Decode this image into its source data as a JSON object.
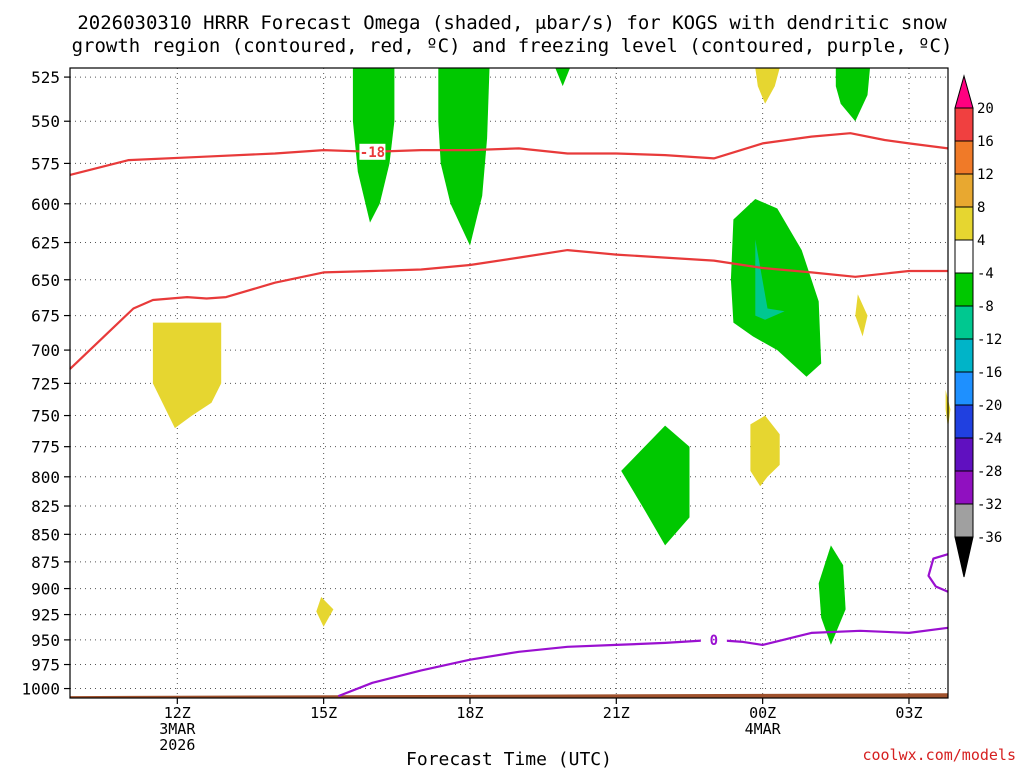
{
  "chart_data": {
    "type": "heatmap",
    "title_lines": [
      "2026030310 HRRR Forecast Omega (shaded, μbar/s) for KOGS with dendritic snow",
      "growth region (contoured, red, ºC) and freezing level (contoured, purple, ºC)"
    ],
    "xlabel": "Forecast Time (UTC)",
    "credit": "coolwx.com/models",
    "x_range_hours": [
      9.8,
      27.8
    ],
    "y_range_hpa": [
      520,
      1010
    ],
    "y_scale": "log",
    "y_ticks": [
      525,
      550,
      575,
      600,
      625,
      650,
      675,
      700,
      725,
      750,
      775,
      800,
      825,
      850,
      875,
      900,
      925,
      950,
      975,
      1000
    ],
    "x_ticks": [
      {
        "h": 12,
        "lines": [
          "12Z",
          "3MAR",
          "2026"
        ]
      },
      {
        "h": 15,
        "lines": [
          "15Z"
        ]
      },
      {
        "h": 18,
        "lines": [
          "18Z"
        ]
      },
      {
        "h": 21,
        "lines": [
          "21Z"
        ]
      },
      {
        "h": 24,
        "lines": [
          "00Z",
          "4MAR"
        ]
      },
      {
        "h": 27,
        "lines": [
          "03Z"
        ]
      }
    ],
    "colorbar": {
      "labels": [
        "20",
        "16",
        "12",
        "8",
        "4",
        "-4",
        "-8",
        "-12",
        "-16",
        "-20",
        "-24",
        "-28",
        "-32",
        "-36"
      ],
      "colors": [
        "#ff0080",
        "#f04040",
        "#f07a28",
        "#e8a830",
        "#e6d630",
        "#ffffff",
        "#00c800",
        "#00c890",
        "#00b4c8",
        "#1e90ff",
        "#2040e0",
        "#6010c0",
        "#9010c0",
        "#a0a0a0",
        "#000000"
      ]
    },
    "shaded_regions": [
      {
        "color": "#00c800",
        "points": [
          [
            15.6,
            520
          ],
          [
            16.45,
            520
          ],
          [
            16.45,
            550
          ],
          [
            16.35,
            575
          ],
          [
            16.15,
            600
          ],
          [
            15.95,
            612
          ],
          [
            15.7,
            580
          ],
          [
            15.6,
            550
          ]
        ]
      },
      {
        "color": "#00c800",
        "points": [
          [
            17.35,
            520
          ],
          [
            18.4,
            520
          ],
          [
            18.35,
            560
          ],
          [
            18.25,
            595
          ],
          [
            18.0,
            627
          ],
          [
            17.6,
            600
          ],
          [
            17.4,
            575
          ],
          [
            17.35,
            550
          ]
        ]
      },
      {
        "color": "#00c800",
        "points": [
          [
            19.75,
            520
          ],
          [
            20.05,
            520
          ],
          [
            19.9,
            530
          ]
        ]
      },
      {
        "color": "#e6d630",
        "points": [
          [
            23.85,
            520
          ],
          [
            24.35,
            520
          ],
          [
            24.25,
            530
          ],
          [
            24.05,
            540
          ],
          [
            23.9,
            530
          ]
        ]
      },
      {
        "color": "#00c800",
        "points": [
          [
            25.5,
            520
          ],
          [
            26.2,
            520
          ],
          [
            26.15,
            535
          ],
          [
            25.9,
            550
          ],
          [
            25.6,
            540
          ],
          [
            25.5,
            530
          ]
        ]
      },
      {
        "color": "#00c800",
        "points": [
          [
            23.4,
            610
          ],
          [
            23.85,
            597
          ],
          [
            24.3,
            603
          ],
          [
            24.8,
            630
          ],
          [
            25.15,
            665
          ],
          [
            25.2,
            710
          ],
          [
            24.9,
            720
          ],
          [
            24.3,
            700
          ],
          [
            23.8,
            690
          ],
          [
            23.4,
            680
          ],
          [
            23.35,
            650
          ]
        ]
      },
      {
        "color": "#00c890",
        "points": [
          [
            23.85,
            623
          ],
          [
            24.1,
            670
          ],
          [
            24.45,
            672
          ],
          [
            24.05,
            678
          ],
          [
            23.85,
            675
          ]
        ]
      },
      {
        "color": "#e6d630",
        "points": [
          [
            25.95,
            660
          ],
          [
            26.15,
            675
          ],
          [
            26.05,
            690
          ],
          [
            25.9,
            675
          ]
        ]
      },
      {
        "color": "#e6d630",
        "points": [
          [
            11.5,
            680
          ],
          [
            12.9,
            680
          ],
          [
            12.9,
            725
          ],
          [
            12.7,
            740
          ],
          [
            12.3,
            750
          ],
          [
            11.95,
            760
          ],
          [
            11.5,
            725
          ]
        ]
      },
      {
        "color": "#e6d630",
        "points": [
          [
            27.75,
            730
          ],
          [
            27.85,
            745
          ],
          [
            27.8,
            760
          ],
          [
            27.75,
            745
          ]
        ]
      },
      {
        "color": "#e6d630",
        "points": [
          [
            23.75,
            757
          ],
          [
            24.05,
            750
          ],
          [
            24.35,
            765
          ],
          [
            24.35,
            790
          ],
          [
            24.1,
            800
          ],
          [
            23.95,
            808
          ],
          [
            23.75,
            795
          ]
        ]
      },
      {
        "color": "#00c800",
        "points": [
          [
            22.0,
            758
          ],
          [
            22.5,
            775
          ],
          [
            22.5,
            835
          ],
          [
            22.0,
            860
          ],
          [
            21.6,
            830
          ],
          [
            21.1,
            795
          ]
        ]
      },
      {
        "color": "#e6d630",
        "points": [
          [
            14.95,
            908
          ],
          [
            15.2,
            920
          ],
          [
            15.0,
            937
          ],
          [
            14.85,
            922
          ]
        ]
      },
      {
        "color": "#00c800",
        "points": [
          [
            25.4,
            860
          ],
          [
            25.65,
            878
          ],
          [
            25.7,
            920
          ],
          [
            25.4,
            955
          ],
          [
            25.2,
            928
          ],
          [
            25.15,
            895
          ]
        ]
      }
    ],
    "red_contours": [
      {
        "label": "-18",
        "points": [
          [
            9.8,
            582
          ],
          [
            11.0,
            573
          ],
          [
            12.5,
            571
          ],
          [
            14.0,
            569
          ],
          [
            15.0,
            567
          ],
          [
            16.0,
            568
          ],
          [
            17.0,
            567
          ],
          [
            18.0,
            567
          ],
          [
            19.0,
            566
          ],
          [
            20.0,
            569
          ],
          [
            21.0,
            569
          ],
          [
            22.0,
            570
          ],
          [
            23.0,
            572
          ],
          [
            24.0,
            563
          ],
          [
            25.0,
            559
          ],
          [
            25.8,
            557
          ],
          [
            26.5,
            561
          ],
          [
            27.0,
            563
          ],
          [
            27.8,
            566
          ]
        ]
      },
      {
        "label": "",
        "points": [
          [
            9.8,
            714
          ],
          [
            10.5,
            690
          ],
          [
            11.1,
            670
          ],
          [
            11.5,
            664
          ],
          [
            12.2,
            662
          ],
          [
            12.6,
            663
          ],
          [
            13.0,
            662
          ],
          [
            14.0,
            652
          ],
          [
            15.0,
            645
          ],
          [
            16.0,
            644
          ],
          [
            17.0,
            643
          ],
          [
            18.0,
            640
          ],
          [
            19.0,
            635
          ],
          [
            20.0,
            630
          ],
          [
            21.0,
            633
          ],
          [
            22.0,
            635
          ],
          [
            23.0,
            637
          ],
          [
            24.0,
            642
          ],
          [
            25.0,
            645
          ],
          [
            25.9,
            648
          ],
          [
            27.0,
            644
          ],
          [
            27.8,
            644
          ]
        ]
      }
    ],
    "purple_contours": [
      {
        "label": "0",
        "points": [
          [
            15.3,
            1008
          ],
          [
            16.0,
            994
          ],
          [
            17.0,
            981
          ],
          [
            18.0,
            970
          ],
          [
            19.0,
            962
          ],
          [
            20.0,
            957
          ],
          [
            21.0,
            955
          ],
          [
            22.0,
            953
          ],
          [
            23.0,
            950
          ],
          [
            23.6,
            952
          ],
          [
            24.0,
            955
          ],
          [
            24.5,
            949
          ],
          [
            25.0,
            943
          ],
          [
            26.0,
            941
          ],
          [
            27.0,
            943
          ],
          [
            27.8,
            938
          ]
        ]
      },
      {
        "label": "",
        "points": [
          [
            27.8,
            868
          ],
          [
            27.5,
            872
          ],
          [
            27.4,
            888
          ],
          [
            27.55,
            898
          ],
          [
            27.8,
            903
          ]
        ]
      }
    ],
    "terrain": {
      "color": "#a0522d",
      "top_left_hpa": 1008,
      "top_right_hpa": 1005
    }
  }
}
